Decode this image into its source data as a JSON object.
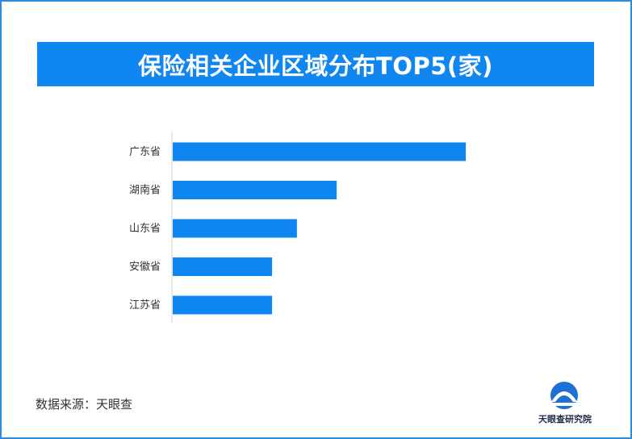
{
  "colors": {
    "bar": "#0f86f0",
    "title_bg": "#0f86f0",
    "border": "#2b8ce6",
    "axis": "#cfcfcf"
  },
  "source": "数据来源：天眼查",
  "logo": {
    "text": "天眼查研究院",
    "icon": "tianyancha-logo-icon"
  },
  "chart_data": {
    "type": "bar",
    "orientation": "horizontal",
    "title": "保险相关企业区域分布TOP5(家)",
    "categories": [
      "广东省",
      "湖南省",
      "山东省",
      "安徽省",
      "江苏省"
    ],
    "values": [
      118,
      66,
      50,
      40,
      40
    ],
    "xlim": [
      0,
      130
    ],
    "grid": false,
    "legend": "none"
  }
}
